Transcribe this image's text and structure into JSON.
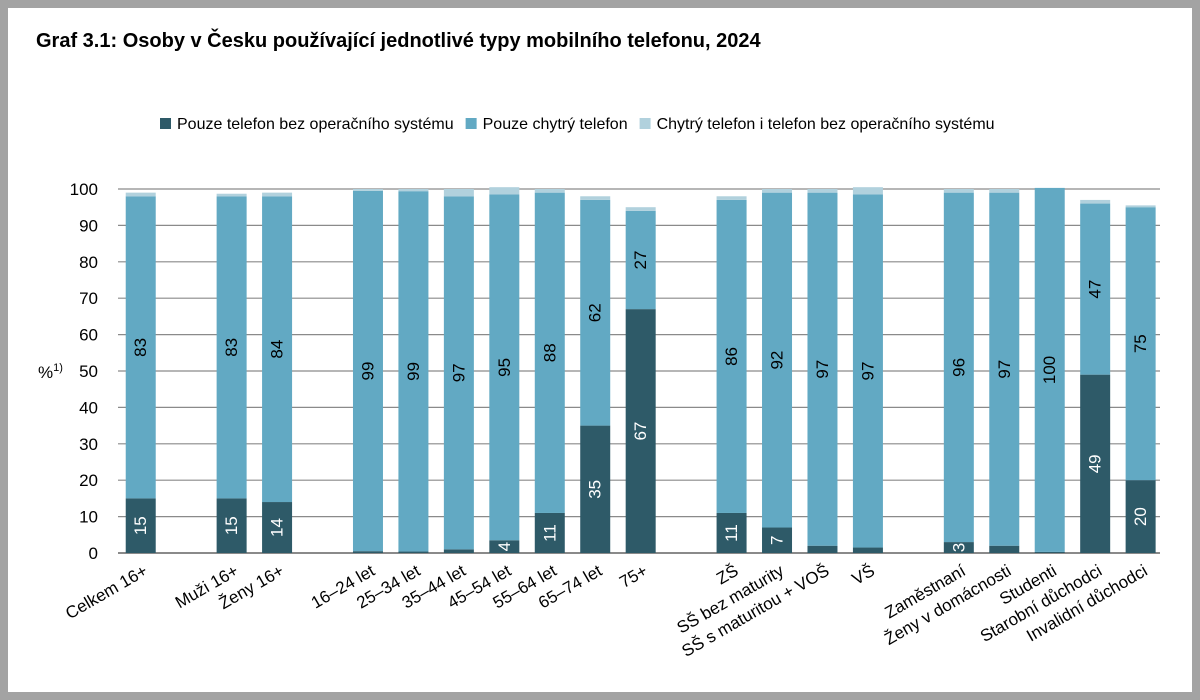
{
  "chart_data": {
    "type": "bar",
    "stacked": true,
    "title": "Graf 3.1: Osoby v Česku používající jednotlivé typy mobilního telefonu, 2024",
    "ylabel": "%",
    "ylabel_note": "1)",
    "ylim": [
      0,
      100
    ],
    "yticks": [
      0,
      10,
      20,
      30,
      40,
      50,
      60,
      70,
      80,
      90,
      100
    ],
    "grid": true,
    "legend_position": "top-right",
    "categories": [
      "Celkem 16+",
      "Muži 16+",
      "Ženy 16+",
      "16–24 let",
      "25–34 let",
      "35–44 let",
      "45–54 let",
      "55–64 let",
      "65–74 let",
      "75+",
      "ZŠ",
      "SŠ bez maturity",
      "SŠ s maturitou + VOŠ",
      "VŠ",
      "Zaměstnaní",
      "Ženy v domácnosti",
      "Studenti",
      "Starobní důchodci",
      "Invalidní důchodci"
    ],
    "groups": [
      [
        0
      ],
      [
        1,
        2
      ],
      [
        3,
        4,
        5,
        6,
        7,
        8,
        9
      ],
      [
        10,
        11,
        12,
        13
      ],
      [
        14,
        15,
        16,
        17,
        18
      ]
    ],
    "series": [
      {
        "name": "Pouze telefon bez operačního systému",
        "color": "#2e5a68",
        "values": [
          15,
          15,
          14,
          0.5,
          0.4,
          1,
          3.5,
          11,
          35,
          67,
          11,
          7,
          2,
          1.5,
          3,
          2,
          0.3,
          49,
          20
        ],
        "labels": [
          "15",
          "15",
          "14",
          "",
          "",
          "",
          "4",
          "11",
          "35",
          "67",
          "11",
          "7",
          "",
          "",
          "3",
          "",
          "",
          "49",
          "20"
        ]
      },
      {
        "name": "Pouze chytrý telefon",
        "color": "#62a9c3",
        "values": [
          83,
          83,
          84,
          99,
          99,
          97,
          95,
          88,
          62,
          27,
          86,
          92,
          97,
          97,
          96,
          97,
          100,
          47,
          75
        ],
        "labels": [
          "83",
          "83",
          "84",
          "99",
          "99",
          "97",
          "95",
          "88",
          "62",
          "27",
          "86",
          "92",
          "97",
          "97",
          "96",
          "97",
          "100",
          "47",
          "75"
        ]
      },
      {
        "name": "Chytrý telefon i telefon bez operačního systému",
        "color": "#b1d1dd",
        "values": [
          1,
          0.7,
          1,
          0.5,
          0.6,
          2,
          2,
          1,
          1,
          1,
          1,
          1,
          1,
          2,
          1,
          1,
          0,
          1,
          0.5
        ]
      }
    ]
  }
}
